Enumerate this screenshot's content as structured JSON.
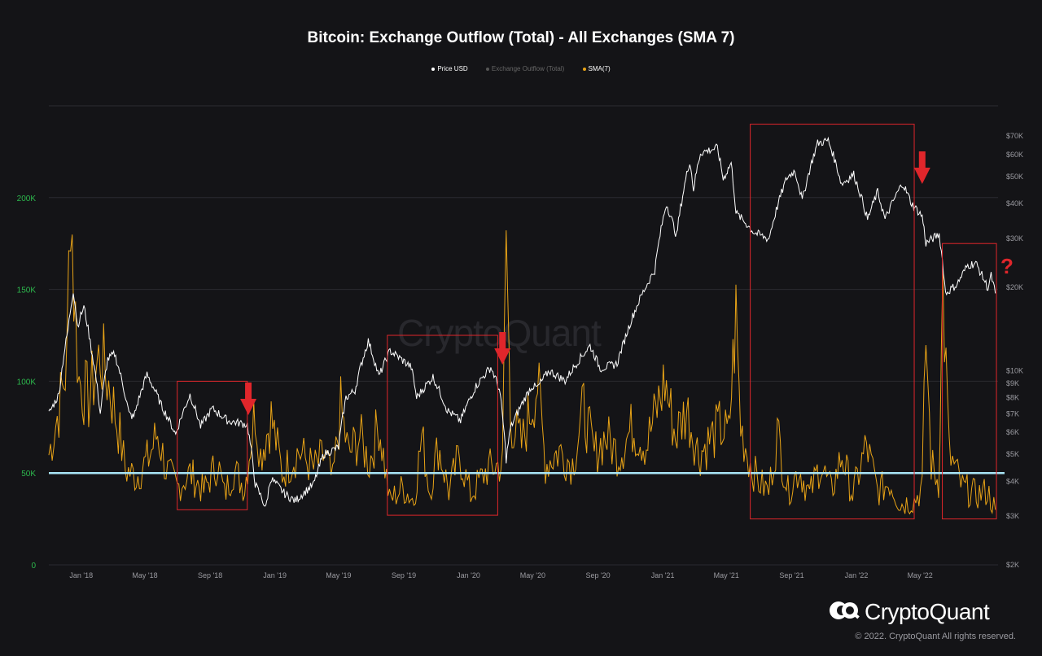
{
  "title": "Bitcoin: Exchange Outflow (Total) - All Exchanges (SMA 7)",
  "legend": [
    {
      "label": "Price USD",
      "color": "#ffffff"
    },
    {
      "label": "Exchange Outflow (Total)",
      "color": "#555555"
    },
    {
      "label": "SMA(7)",
      "color": "#e8a317"
    }
  ],
  "watermark": "CryptoQuant",
  "brand": "CryptoQuant",
  "copyright": "© 2022. CryptoQuant All rights reserved.",
  "colors": {
    "background": "#141417",
    "price_line": "#ffffff",
    "sma_line": "#e8a317",
    "left_axis_text": "#2db84d",
    "right_axis_text": "#9a9aa0",
    "threshold_line": "#a8e4f5",
    "annotation": "#e0262b"
  },
  "chart_data": {
    "type": "line",
    "x_start": "2017-11",
    "x_end": "2022-09",
    "x_ticks": [
      "Jan '18",
      "May '18",
      "Sep '18",
      "Jan '19",
      "May '19",
      "Sep '19",
      "Jan '20",
      "May '20",
      "Sep '20",
      "Jan '21",
      "May '21",
      "Sep '21",
      "Jan '22",
      "May '22"
    ],
    "left_axis": {
      "ticks": [
        "0",
        "50K",
        "100K",
        "150K",
        "200K"
      ],
      "range": [
        0,
        250000
      ]
    },
    "right_axis": {
      "scale": "log",
      "ticks": [
        "$2K",
        "$3K",
        "$4K",
        "$5K",
        "$6K",
        "$7K",
        "$8K",
        "$9K",
        "$10K",
        "$20K",
        "$30K",
        "$40K",
        "$50K",
        "$60K",
        "$70K"
      ],
      "range": [
        2000,
        90000
      ]
    },
    "threshold": 50000,
    "series": [
      {
        "name": "Price USD",
        "axis": "right",
        "points": [
          [
            "2017-11-01",
            7000
          ],
          [
            "2017-11-20",
            8200
          ],
          [
            "2017-12-07",
            14000
          ],
          [
            "2017-12-17",
            19500
          ],
          [
            "2017-12-25",
            14500
          ],
          [
            "2018-01-06",
            17000
          ],
          [
            "2018-01-20",
            12000
          ],
          [
            "2018-02-06",
            7000
          ],
          [
            "2018-02-20",
            11000
          ],
          [
            "2018-03-05",
            11500
          ],
          [
            "2018-04-01",
            7000
          ],
          [
            "2018-04-10",
            6800
          ],
          [
            "2018-05-05",
            9700
          ],
          [
            "2018-06-01",
            7500
          ],
          [
            "2018-06-28",
            5900
          ],
          [
            "2018-07-25",
            8200
          ],
          [
            "2018-08-14",
            6300
          ],
          [
            "2018-09-05",
            7300
          ],
          [
            "2018-10-05",
            6600
          ],
          [
            "2018-11-10",
            6400
          ],
          [
            "2018-11-25",
            3900
          ],
          [
            "2018-12-15",
            3200
          ],
          [
            "2018-12-24",
            4100
          ],
          [
            "2019-01-20",
            3600
          ],
          [
            "2019-02-08",
            3400
          ],
          [
            "2019-03-15",
            3900
          ],
          [
            "2019-04-03",
            5000
          ],
          [
            "2019-05-01",
            5300
          ],
          [
            "2019-05-15",
            8000
          ],
          [
            "2019-06-01",
            8500
          ],
          [
            "2019-06-26",
            12800
          ],
          [
            "2019-07-16",
            9500
          ],
          [
            "2019-08-06",
            11800
          ],
          [
            "2019-09-15",
            10300
          ],
          [
            "2019-09-25",
            8000
          ],
          [
            "2019-10-26",
            9500
          ],
          [
            "2019-11-22",
            7200
          ],
          [
            "2019-12-17",
            6600
          ],
          [
            "2020-01-15",
            8800
          ],
          [
            "2020-02-12",
            10300
          ],
          [
            "2020-02-28",
            8600
          ],
          [
            "2020-03-12",
            4800
          ],
          [
            "2020-03-20",
            6200
          ],
          [
            "2020-04-29",
            8800
          ],
          [
            "2020-05-10",
            8700
          ],
          [
            "2020-06-01",
            10000
          ],
          [
            "2020-07-01",
            9200
          ],
          [
            "2020-07-28",
            11000
          ],
          [
            "2020-08-17",
            12300
          ],
          [
            "2020-09-05",
            10200
          ],
          [
            "2020-10-07",
            10600
          ],
          [
            "2020-10-21",
            12900
          ],
          [
            "2020-11-17",
            17800
          ],
          [
            "2020-12-17",
            23000
          ],
          [
            "2021-01-08",
            40000
          ],
          [
            "2021-01-27",
            30500
          ],
          [
            "2021-02-21",
            57000
          ],
          [
            "2021-02-28",
            45000
          ],
          [
            "2021-03-13",
            61000
          ],
          [
            "2021-04-14",
            63500
          ],
          [
            "2021-04-25",
            49000
          ],
          [
            "2021-05-10",
            56000
          ],
          [
            "2021-05-19",
            37000
          ],
          [
            "2021-06-22",
            31500
          ],
          [
            "2021-07-20",
            29800
          ],
          [
            "2021-08-23",
            49500
          ],
          [
            "2021-09-07",
            52600
          ],
          [
            "2021-09-21",
            41000
          ],
          [
            "2021-10-20",
            66000
          ],
          [
            "2021-11-09",
            67500
          ],
          [
            "2021-12-04",
            47000
          ],
          [
            "2021-12-27",
            51000
          ],
          [
            "2022-01-22",
            35000
          ],
          [
            "2022-02-10",
            44000
          ],
          [
            "2022-02-24",
            35000
          ],
          [
            "2022-03-29",
            47400
          ],
          [
            "2022-04-15",
            40000
          ],
          [
            "2022-05-05",
            36000
          ],
          [
            "2022-05-12",
            28800
          ],
          [
            "2022-06-06",
            31000
          ],
          [
            "2022-06-18",
            19000
          ],
          [
            "2022-07-10",
            20500
          ],
          [
            "2022-07-30",
            24000
          ],
          [
            "2022-08-14",
            24400
          ],
          [
            "2022-09-06",
            19800
          ],
          [
            "2022-09-12",
            22000
          ],
          [
            "2022-09-20",
            19000
          ]
        ]
      },
      {
        "name": "SMA(7)",
        "axis": "left",
        "points": [
          [
            "2017-11-01",
            60000
          ],
          [
            "2017-11-20",
            85000
          ],
          [
            "2017-12-05",
            110000
          ],
          [
            "2017-12-12",
            210000
          ],
          [
            "2017-12-18",
            150000
          ],
          [
            "2017-12-28",
            100000
          ],
          [
            "2018-01-15",
            90000
          ],
          [
            "2018-02-06",
            115000
          ],
          [
            "2018-02-25",
            95000
          ],
          [
            "2018-03-15",
            70000
          ],
          [
            "2018-03-25",
            52000
          ],
          [
            "2018-04-15",
            48000
          ],
          [
            "2018-05-08",
            58000
          ],
          [
            "2018-05-25",
            72000
          ],
          [
            "2018-06-10",
            52000
          ],
          [
            "2018-07-01",
            42000
          ],
          [
            "2018-07-25",
            50000
          ],
          [
            "2018-08-20",
            40000
          ],
          [
            "2018-09-15",
            56000
          ],
          [
            "2018-09-28",
            38000
          ],
          [
            "2018-10-15",
            52000
          ],
          [
            "2018-11-05",
            42000
          ],
          [
            "2018-11-25",
            85000
          ],
          [
            "2018-12-05",
            60000
          ],
          [
            "2018-12-25",
            80000
          ],
          [
            "2019-01-15",
            50000
          ],
          [
            "2019-02-15",
            62000
          ],
          [
            "2019-03-15",
            52000
          ],
          [
            "2019-04-05",
            60000
          ],
          [
            "2019-04-20",
            45000
          ],
          [
            "2019-05-05",
            85000
          ],
          [
            "2019-05-20",
            60000
          ],
          [
            "2019-06-10",
            70000
          ],
          [
            "2019-06-28",
            55000
          ],
          [
            "2019-07-16",
            78000
          ],
          [
            "2019-08-05",
            35000
          ],
          [
            "2019-08-30",
            42000
          ],
          [
            "2019-09-20",
            35000
          ],
          [
            "2019-10-05",
            70000
          ],
          [
            "2019-10-20",
            40000
          ],
          [
            "2019-11-05",
            65000
          ],
          [
            "2019-11-25",
            40000
          ],
          [
            "2019-12-15",
            60000
          ],
          [
            "2020-01-05",
            38000
          ],
          [
            "2020-02-05",
            52000
          ],
          [
            "2020-03-05",
            55000
          ],
          [
            "2020-03-12",
            180000
          ],
          [
            "2020-03-20",
            80000
          ],
          [
            "2020-04-10",
            65000
          ],
          [
            "2020-05-10",
            100000
          ],
          [
            "2020-05-25",
            55000
          ],
          [
            "2020-06-20",
            62000
          ],
          [
            "2020-07-15",
            55000
          ],
          [
            "2020-08-05",
            85000
          ],
          [
            "2020-08-25",
            60000
          ],
          [
            "2020-09-15",
            70000
          ],
          [
            "2020-10-10",
            60000
          ],
          [
            "2020-11-05",
            75000
          ],
          [
            "2020-12-01",
            65000
          ],
          [
            "2021-01-05",
            100000
          ],
          [
            "2021-01-25",
            70000
          ],
          [
            "2021-02-15",
            85000
          ],
          [
            "2021-03-10",
            60000
          ],
          [
            "2021-04-05",
            70000
          ],
          [
            "2021-04-18",
            75000
          ],
          [
            "2021-05-05",
            70000
          ],
          [
            "2021-05-19",
            135000
          ],
          [
            "2021-05-28",
            75000
          ],
          [
            "2021-06-15",
            55000
          ],
          [
            "2021-07-01",
            45000
          ],
          [
            "2021-07-20",
            40000
          ],
          [
            "2021-08-05",
            72000
          ],
          [
            "2021-08-25",
            40000
          ],
          [
            "2021-09-15",
            52000
          ],
          [
            "2021-10-05",
            38000
          ],
          [
            "2021-10-25",
            55000
          ],
          [
            "2021-11-15",
            40000
          ],
          [
            "2021-12-05",
            60000
          ],
          [
            "2021-12-25",
            38000
          ],
          [
            "2022-01-20",
            65000
          ],
          [
            "2022-02-10",
            40000
          ],
          [
            "2022-03-05",
            45000
          ],
          [
            "2022-03-25",
            33000
          ],
          [
            "2022-04-20",
            35000
          ],
          [
            "2022-05-05",
            42000
          ],
          [
            "2022-05-12",
            125000
          ],
          [
            "2022-05-22",
            55000
          ],
          [
            "2022-06-05",
            45000
          ],
          [
            "2022-06-13",
            150000
          ],
          [
            "2022-06-25",
            60000
          ],
          [
            "2022-07-20",
            42000
          ],
          [
            "2022-08-15",
            38000
          ],
          [
            "2022-09-05",
            40000
          ],
          [
            "2022-09-20",
            30000
          ]
        ]
      }
    ],
    "annotations": [
      {
        "type": "box",
        "from": "2018-07-01",
        "to": "2018-11-10",
        "y_from": 30000,
        "y_to": 100000
      },
      {
        "type": "box",
        "from": "2019-08-01",
        "to": "2020-02-25",
        "y_from": 27000,
        "y_to": 125000
      },
      {
        "type": "box",
        "from": "2021-06-15",
        "to": "2022-04-20",
        "y_from": 25000,
        "y_to": 240000
      },
      {
        "type": "box",
        "from": "2022-06-12",
        "to": "2022-09-22",
        "y_from": 25000,
        "y_to": 175000
      },
      {
        "type": "arrow",
        "date": "2018-11-12"
      },
      {
        "type": "arrow",
        "date": "2020-03-05"
      },
      {
        "type": "arrow",
        "date": "2022-05-05"
      },
      {
        "type": "question",
        "label": "?"
      }
    ]
  }
}
